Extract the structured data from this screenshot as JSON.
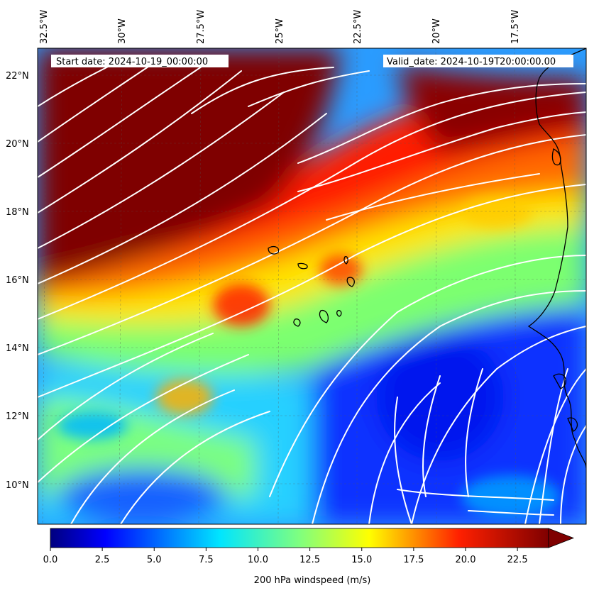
{
  "map": {
    "start_label": "Start date: 2024-10-19_00:00:00",
    "valid_label": "Valid_date: 2024-10-19T20:00:00.00",
    "lon_ticks": [
      "32.5°W",
      "30°W",
      "27.5°W",
      "25°W",
      "22.5°W",
      "20°W",
      "17.5°W"
    ],
    "lat_ticks": [
      "22°N",
      "20°N",
      "18°N",
      "16°N",
      "14°N",
      "12°N",
      "10°N"
    ],
    "colorbar": {
      "label": "200 hPa windspeed (m/s)",
      "ticks": [
        "0.0",
        "2.5",
        "5.0",
        "7.5",
        "10.0",
        "12.5",
        "15.0",
        "17.5",
        "20.0",
        "22.5"
      ],
      "min": 0,
      "max": 24,
      "extend": "max"
    },
    "colors": {
      "streamline": "#ffffff",
      "coastline": "#000000",
      "jet_core": "#7f0000"
    }
  }
}
